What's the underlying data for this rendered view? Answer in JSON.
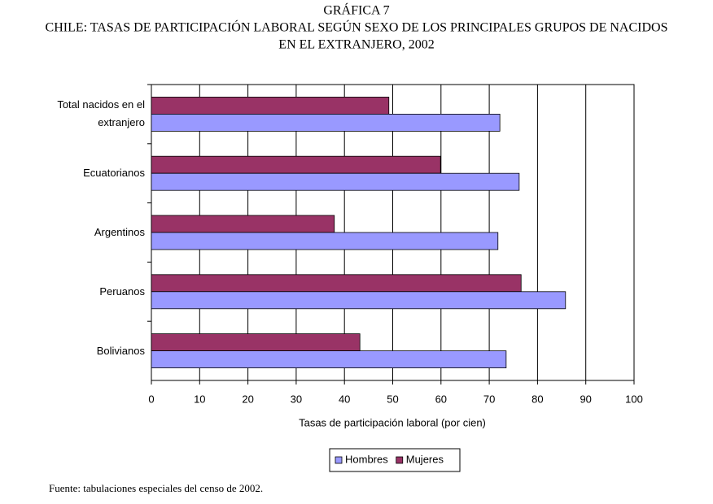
{
  "chart_data": {
    "type": "hbar",
    "title": "GRÁFICA 7",
    "subtitle_lines": [
      "CHILE: TASAS DE PARTICIPACIÓN LABORAL SEGÚN SEXO DE LOS PRINCIPALES GRUPOS DE NACIDOS",
      "EN EL EXTRANJERO, 2002"
    ],
    "categories": [
      "Total nacidos en el extranjero",
      "Ecuatorianos",
      "Argentinos",
      "Peruanos",
      "Bolivianos"
    ],
    "series": [
      {
        "name": "Hombres",
        "color": "#9999ff",
        "values": [
          72.2,
          76.2,
          71.8,
          85.8,
          73.5
        ]
      },
      {
        "name": "Mujeres",
        "color": "#993366",
        "values": [
          49.2,
          59.9,
          37.9,
          76.6,
          43.2
        ]
      }
    ],
    "xlabel": "Tasas de participación laboral (por cien)",
    "xlim": [
      0,
      100
    ],
    "xticks": [
      0,
      10,
      20,
      30,
      40,
      50,
      60,
      70,
      80,
      90,
      100
    ],
    "grid": true,
    "legend": "bottom",
    "source": "Fuente: tabulaciones especiales del censo de 2002."
  }
}
